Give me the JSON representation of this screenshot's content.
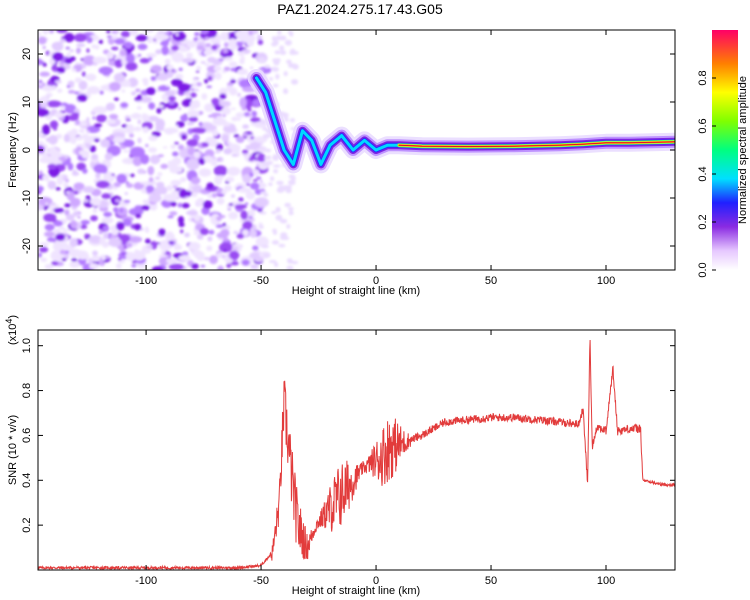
{
  "title": "PAZ1.2024.275.17.43.G05",
  "chart_data": [
    {
      "type": "heatmap",
      "xlabel": "Height of straight line (km)",
      "ylabel": "Frequency (Hz)",
      "xlim": [
        -147,
        130
      ],
      "ylim": [
        -25,
        25
      ],
      "x_ticks": [
        "-100",
        "-50",
        "0",
        "50",
        "100"
      ],
      "y_ticks": [
        "-20",
        "-10",
        "0",
        "10",
        "20"
      ],
      "x_tick_values": [
        -100,
        -50,
        0,
        50,
        100
      ],
      "y_tick_values": [
        -20,
        -10,
        0,
        10,
        20
      ],
      "ridge": {
        "x": [
          -52,
          -48,
          -44,
          -40,
          -36,
          -32,
          -28,
          -24,
          -20,
          -15,
          -10,
          -5,
          0,
          5,
          10,
          20,
          40,
          60,
          80,
          90,
          100,
          110,
          120,
          130
        ],
        "y": [
          15,
          12,
          6,
          0,
          -3,
          4,
          2,
          -3,
          1,
          3,
          0,
          2,
          0,
          1,
          1,
          0.8,
          0.7,
          0.8,
          1.0,
          1.2,
          1.5,
          1.5,
          1.6,
          1.7
        ]
      },
      "colorbar": {
        "label": "Normalized spectral amplitude",
        "ticks": [
          "0.0",
          "0.2",
          "0.4",
          "0.6",
          "0.8"
        ],
        "tick_values": [
          0.0,
          0.2,
          0.4,
          0.6,
          0.8
        ],
        "range": [
          0,
          1
        ]
      },
      "grid": false
    },
    {
      "type": "line",
      "xlabel": "Height of straight line (km)",
      "ylabel": "SNR (10 * v/v)",
      "scale_label_prefix": "(x10",
      "scale_label_exp": "4",
      "scale_label_suffix": ")",
      "xlim": [
        -147,
        130
      ],
      "ylim": [
        0,
        1.07
      ],
      "x_ticks": [
        "-100",
        "-50",
        "0",
        "50",
        "100"
      ],
      "y_ticks": [
        "0.2",
        "0.4",
        "0.6",
        "0.8",
        "1.0"
      ],
      "x_tick_values": [
        -100,
        -50,
        0,
        50,
        100
      ],
      "y_tick_values": [
        0.2,
        0.4,
        0.6,
        0.8,
        1.0
      ],
      "series": [
        {
          "color": "#e23b3b",
          "x": [
            -147,
            -60,
            -50,
            -45,
            -42,
            -40,
            -38,
            -36,
            -34,
            -30,
            -26,
            -22,
            -18,
            -14,
            -10,
            -6,
            -2,
            2,
            6,
            10,
            15,
            20,
            25,
            30,
            40,
            50,
            60,
            70,
            80,
            88,
            90,
            92,
            93,
            94,
            96,
            100,
            103,
            105,
            110,
            115,
            116,
            120,
            125,
            130
          ],
          "y": [
            0.01,
            0.01,
            0.02,
            0.08,
            0.3,
            0.75,
            0.55,
            0.35,
            0.2,
            0.1,
            0.2,
            0.25,
            0.3,
            0.35,
            0.4,
            0.45,
            0.48,
            0.5,
            0.55,
            0.56,
            0.58,
            0.6,
            0.63,
            0.66,
            0.67,
            0.68,
            0.68,
            0.67,
            0.66,
            0.65,
            0.72,
            0.38,
            1.05,
            0.55,
            0.64,
            0.62,
            0.9,
            0.62,
            0.63,
            0.63,
            0.4,
            0.39,
            0.38,
            0.38
          ]
        }
      ],
      "grid": false
    }
  ]
}
